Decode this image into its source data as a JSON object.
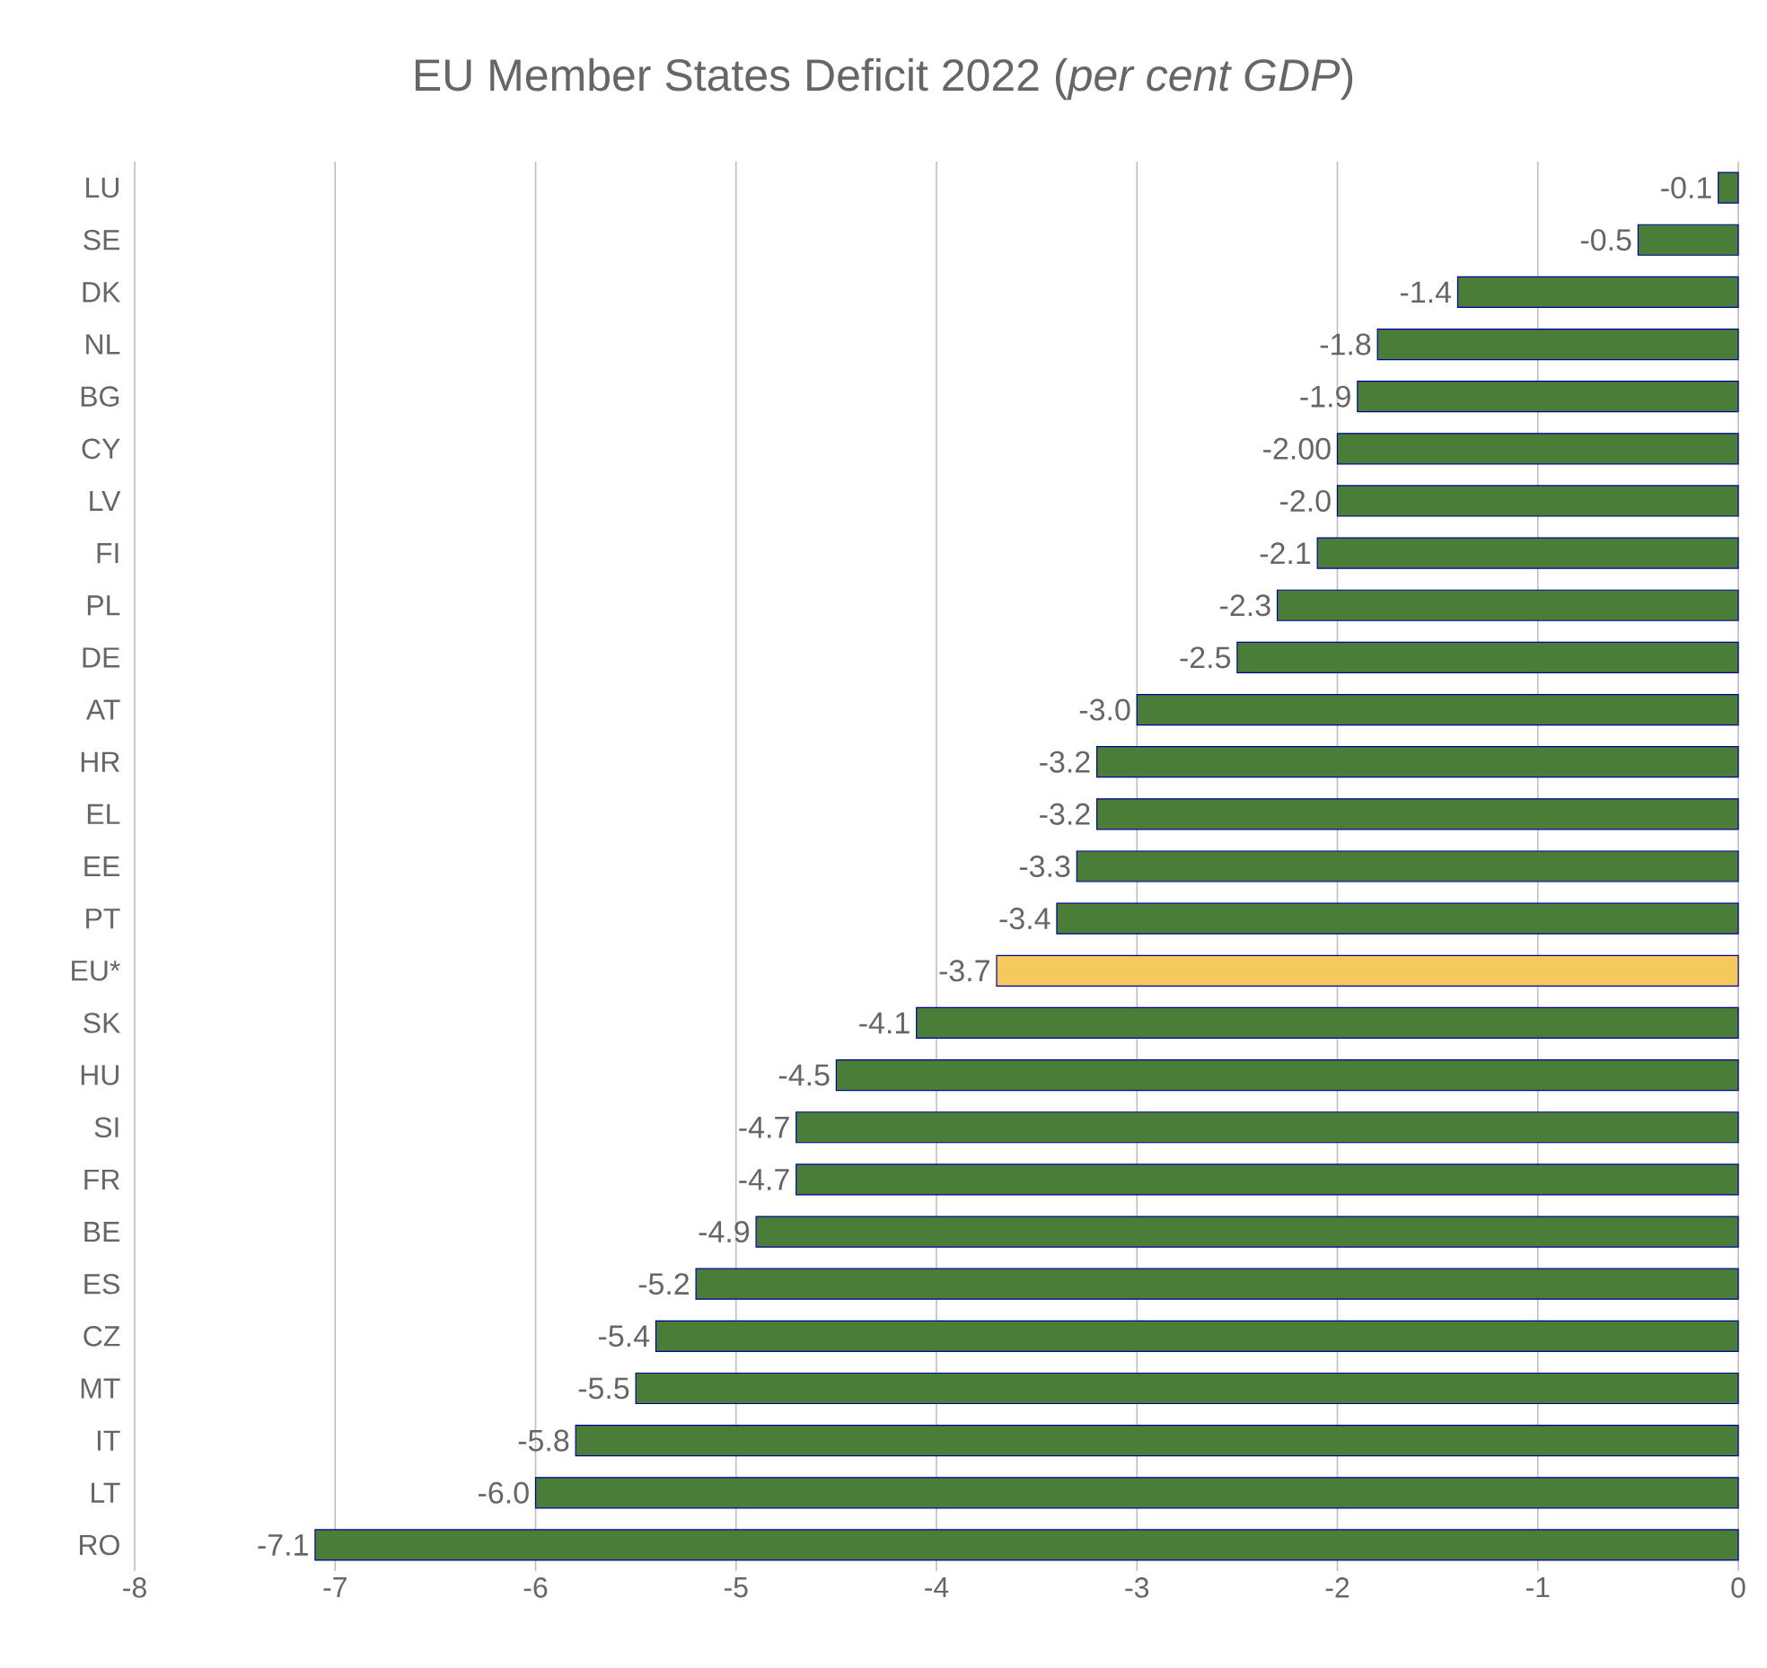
{
  "chart_data": {
    "type": "bar",
    "orientation": "horizontal",
    "title": "EU Member States Deficit 2022 (*per cent GDP*)",
    "categories": [
      "LU",
      "SE",
      "DK",
      "NL",
      "BG",
      "CY",
      "LV",
      "FI",
      "PL",
      "DE",
      "AT",
      "HR",
      "EL",
      "EE",
      "PT",
      "EU*",
      "SK",
      "HU",
      "SI",
      "FR",
      "BE",
      "ES",
      "CZ",
      "MT",
      "IT",
      "LT",
      "RO"
    ],
    "values": [
      -0.1,
      -0.5,
      -1.4,
      -1.8,
      -1.9,
      -2.0,
      -2.0,
      -2.1,
      -2.3,
      -2.5,
      -3.0,
      -3.2,
      -3.2,
      -3.3,
      -3.4,
      -3.7,
      -4.1,
      -4.5,
      -4.7,
      -4.7,
      -4.9,
      -5.2,
      -5.4,
      -5.5,
      -5.8,
      -6.0,
      -7.1
    ],
    "value_labels": [
      "-0.1",
      "-0.5",
      "-1.4",
      "-1.8",
      "-1.9",
      "-2.00",
      "-2.0",
      "-2.1",
      "-2.3",
      "-2.5",
      "-3.0",
      "-3.2",
      "-3.2",
      "-3.3",
      "-3.4",
      "-3.7",
      "-4.1",
      "-4.5",
      "-4.7",
      "-4.7",
      "-4.9",
      "-5.2",
      "-5.4",
      "-5.5",
      "-5.8",
      "-6.0",
      "-7.1"
    ],
    "colors": [
      "#4a7d38",
      "#4a7d38",
      "#4a7d38",
      "#4a7d38",
      "#4a7d38",
      "#4a7d38",
      "#4a7d38",
      "#4a7d38",
      "#4a7d38",
      "#4a7d38",
      "#4a7d38",
      "#4a7d38",
      "#4a7d38",
      "#4a7d38",
      "#4a7d38",
      "#f6c95f",
      "#4a7d38",
      "#4a7d38",
      "#4a7d38",
      "#4a7d38",
      "#4a7d38",
      "#4a7d38",
      "#4a7d38",
      "#4a7d38",
      "#4a7d38",
      "#4a7d38",
      "#4a7d38"
    ],
    "xlim": [
      -8,
      0
    ],
    "xticks": [
      -8,
      -7,
      -6,
      -5,
      -4,
      -3,
      -2,
      -1,
      0
    ],
    "grid": "x"
  }
}
